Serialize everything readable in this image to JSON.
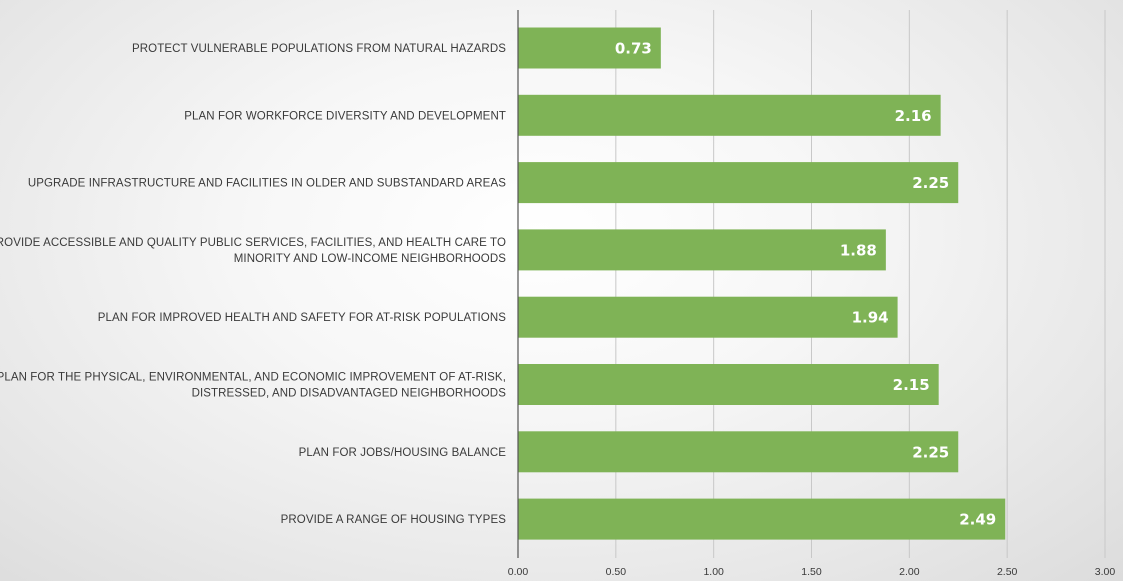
{
  "chart_data": {
    "type": "bar",
    "orientation": "horizontal",
    "categories": [
      [
        "PROTECT VULNERABLE POPULATIONS FROM NATURAL HAZARDS"
      ],
      [
        "PLAN FOR WORKFORCE DIVERSITY AND DEVELOPMENT"
      ],
      [
        "UPGRADE INFRASTRUCTURE AND FACILITIES IN OLDER AND SUBSTANDARD AREAS"
      ],
      [
        "PROVIDE ACCESSIBLE AND QUALITY PUBLIC SERVICES, FACILITIES, AND HEALTH CARE TO",
        "MINORITY AND LOW-INCOME NEIGHBORHOODS"
      ],
      [
        "PLAN FOR IMPROVED HEALTH AND SAFETY FOR AT-RISK POPULATIONS"
      ],
      [
        "PLAN FOR THE PHYSICAL, ENVIRONMENTAL, AND ECONOMIC IMPROVEMENT OF AT-RISK,",
        "DISTRESSED, AND DISADVANTAGED NEIGHBORHOODS"
      ],
      [
        "PLAN FOR JOBS/HOUSING BALANCE"
      ],
      [
        "PROVIDE A RANGE OF HOUSING TYPES"
      ]
    ],
    "values": [
      0.73,
      2.16,
      2.25,
      1.88,
      1.94,
      2.15,
      2.25,
      2.49
    ],
    "data_labels": [
      "0.73",
      "2.16",
      "2.25",
      "1.88",
      "1.94",
      "2.15",
      "2.25",
      "2.49"
    ],
    "xlim": [
      0,
      3
    ],
    "x_ticks": [
      0,
      0.5,
      1,
      1.5,
      2,
      2.5,
      3
    ],
    "x_tick_labels": [
      "0.00",
      "0.50",
      "1.00",
      "1.50",
      "2.00",
      "2.50",
      "3.00"
    ],
    "title": "",
    "xlabel": "",
    "ylabel": "",
    "grid": "vertical",
    "legend": "none",
    "bar_color": "#7fb356",
    "gridline_color": "#c8c8c8",
    "axis_color": "#555555"
  }
}
